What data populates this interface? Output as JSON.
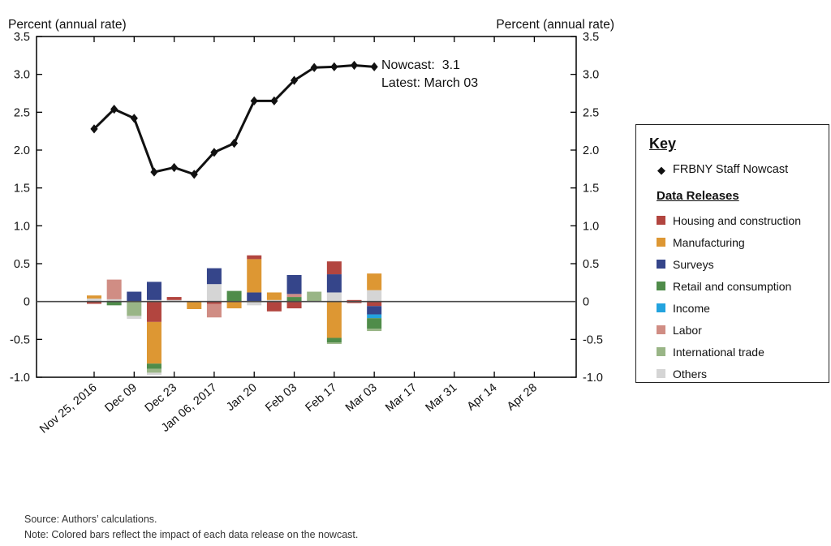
{
  "annotation": {
    "line1": "Nowcast:  3.1",
    "line2": "Latest: March 03"
  },
  "key": {
    "title": "Key",
    "nowcast_label": "FRBNY Staff Nowcast",
    "data_releases_title": "Data Releases"
  },
  "notes": {
    "source": "Source: Authors’ calculations.",
    "note": "Note: Colored bars reflect the impact of each data release on the nowcast."
  },
  "chart_data": {
    "type": "line+stacked-bar",
    "ylabel_left": "Percent (annual rate)",
    "ylabel_right": "Percent (annual rate)",
    "ylim": [
      -1.0,
      3.5
    ],
    "ytick_labels": [
      "3.5",
      "3.0",
      "2.5",
      "2.0",
      "1.5",
      "1.0",
      "0.5",
      "0",
      "-0.5",
      "-1.0"
    ],
    "x_tick_labels": [
      "Nov 25, 2016",
      "Dec 09",
      "Dec 23",
      "Jan 06, 2017",
      "Jan 20",
      "Feb 03",
      "Feb 17",
      "Mar 03",
      "Mar 17",
      "Mar 31",
      "Apr 14",
      "Apr 28"
    ],
    "x_tick_week_step": 2,
    "weeks": [
      "Nov 25, 2016",
      "Dec 02",
      "Dec 09",
      "Dec 16",
      "Dec 23",
      "Dec 30",
      "Jan 06, 2017",
      "Jan 13",
      "Jan 20",
      "Jan 27",
      "Feb 03",
      "Feb 10",
      "Feb 17",
      "Feb 24",
      "Mar 03"
    ],
    "nowcast": {
      "name": "FRBNY Staff Nowcast",
      "color": "#111111",
      "values": [
        2.28,
        2.54,
        2.42,
        1.71,
        1.77,
        1.68,
        1.97,
        2.09,
        2.65,
        2.65,
        2.92,
        3.09,
        3.1,
        3.12,
        3.1
      ]
    },
    "categories": [
      {
        "key": "housing",
        "label": "Housing and construction",
        "color": "#b2453f"
      },
      {
        "key": "manufacturing",
        "label": "Manufacturing",
        "color": "#dd9733"
      },
      {
        "key": "surveys",
        "label": "Surveys",
        "color": "#35458a"
      },
      {
        "key": "retail",
        "label": "Retail and consumption",
        "color": "#4f8c4a"
      },
      {
        "key": "income",
        "label": "Income",
        "color": "#23a3de"
      },
      {
        "key": "labor",
        "label": "Labor",
        "color": "#d08d84"
      },
      {
        "key": "intl_trade",
        "label": "International trade",
        "color": "#99b586"
      },
      {
        "key": "others",
        "label": "Others",
        "color": "#d5d5d5"
      }
    ],
    "bars": [
      {
        "week": "Nov 25, 2016",
        "segments": [
          {
            "category": "others",
            "value": 0.04
          },
          {
            "category": "manufacturing",
            "value": 0.04
          },
          {
            "category": "housing",
            "value": -0.03
          }
        ]
      },
      {
        "week": "Dec 02",
        "segments": [
          {
            "category": "others",
            "value": 0.03
          },
          {
            "category": "labor",
            "value": 0.26
          },
          {
            "category": "retail",
            "value": -0.05
          }
        ]
      },
      {
        "week": "Dec 09",
        "segments": [
          {
            "category": "surveys",
            "value": 0.13
          },
          {
            "category": "intl_trade",
            "value": -0.19
          },
          {
            "category": "others",
            "value": -0.04
          }
        ]
      },
      {
        "week": "Dec 16",
        "segments": [
          {
            "category": "others",
            "value": 0.02
          },
          {
            "category": "surveys",
            "value": 0.24
          },
          {
            "category": "housing",
            "value": -0.27
          },
          {
            "category": "manufacturing",
            "value": -0.55
          },
          {
            "category": "retail",
            "value": -0.07
          },
          {
            "category": "intl_trade",
            "value": -0.05
          },
          {
            "category": "others",
            "value": -0.03
          }
        ]
      },
      {
        "week": "Dec 23",
        "segments": [
          {
            "category": "others",
            "value": 0.02
          },
          {
            "category": "housing",
            "value": 0.04
          }
        ]
      },
      {
        "week": "Dec 30",
        "segments": [
          {
            "category": "manufacturing",
            "value": -0.1
          }
        ]
      },
      {
        "week": "Jan 06, 2017",
        "segments": [
          {
            "category": "others",
            "value": 0.23
          },
          {
            "category": "surveys",
            "value": 0.21
          },
          {
            "category": "housing",
            "value": -0.03
          },
          {
            "category": "labor",
            "value": -0.18
          }
        ]
      },
      {
        "week": "Jan 13",
        "segments": [
          {
            "category": "retail",
            "value": 0.14
          },
          {
            "category": "manufacturing",
            "value": -0.09
          }
        ]
      },
      {
        "week": "Jan 20",
        "segments": [
          {
            "category": "surveys",
            "value": 0.12
          },
          {
            "category": "manufacturing",
            "value": 0.44
          },
          {
            "category": "housing",
            "value": 0.05
          },
          {
            "category": "others",
            "value": -0.05
          }
        ]
      },
      {
        "week": "Jan 27",
        "segments": [
          {
            "category": "others",
            "value": 0.02
          },
          {
            "category": "manufacturing",
            "value": 0.1
          },
          {
            "category": "housing",
            "value": -0.13
          }
        ]
      },
      {
        "week": "Feb 03",
        "segments": [
          {
            "category": "retail",
            "value": 0.06
          },
          {
            "category": "labor",
            "value": 0.04
          },
          {
            "category": "surveys",
            "value": 0.25
          },
          {
            "category": "housing",
            "value": -0.09
          }
        ]
      },
      {
        "week": "Feb 10",
        "segments": [
          {
            "category": "intl_trade",
            "value": 0.13
          }
        ]
      },
      {
        "week": "Feb 17",
        "segments": [
          {
            "category": "others",
            "value": 0.12
          },
          {
            "category": "surveys",
            "value": 0.24
          },
          {
            "category": "housing",
            "value": 0.17
          },
          {
            "category": "manufacturing",
            "value": -0.48
          },
          {
            "category": "retail",
            "value": -0.06
          },
          {
            "category": "intl_trade",
            "value": -0.02
          }
        ]
      },
      {
        "week": "Feb 24",
        "segments": [
          {
            "category": "housing",
            "value": 0.02
          },
          {
            "category": "housing",
            "value": -0.02
          }
        ]
      },
      {
        "week": "Mar 03",
        "segments": [
          {
            "category": "others",
            "value": 0.15
          },
          {
            "category": "manufacturing",
            "value": 0.22
          },
          {
            "category": "housing",
            "value": -0.06
          },
          {
            "category": "surveys",
            "value": -0.11
          },
          {
            "category": "income",
            "value": -0.05
          },
          {
            "category": "retail",
            "value": -0.14
          },
          {
            "category": "intl_trade",
            "value": -0.03
          }
        ]
      }
    ]
  }
}
